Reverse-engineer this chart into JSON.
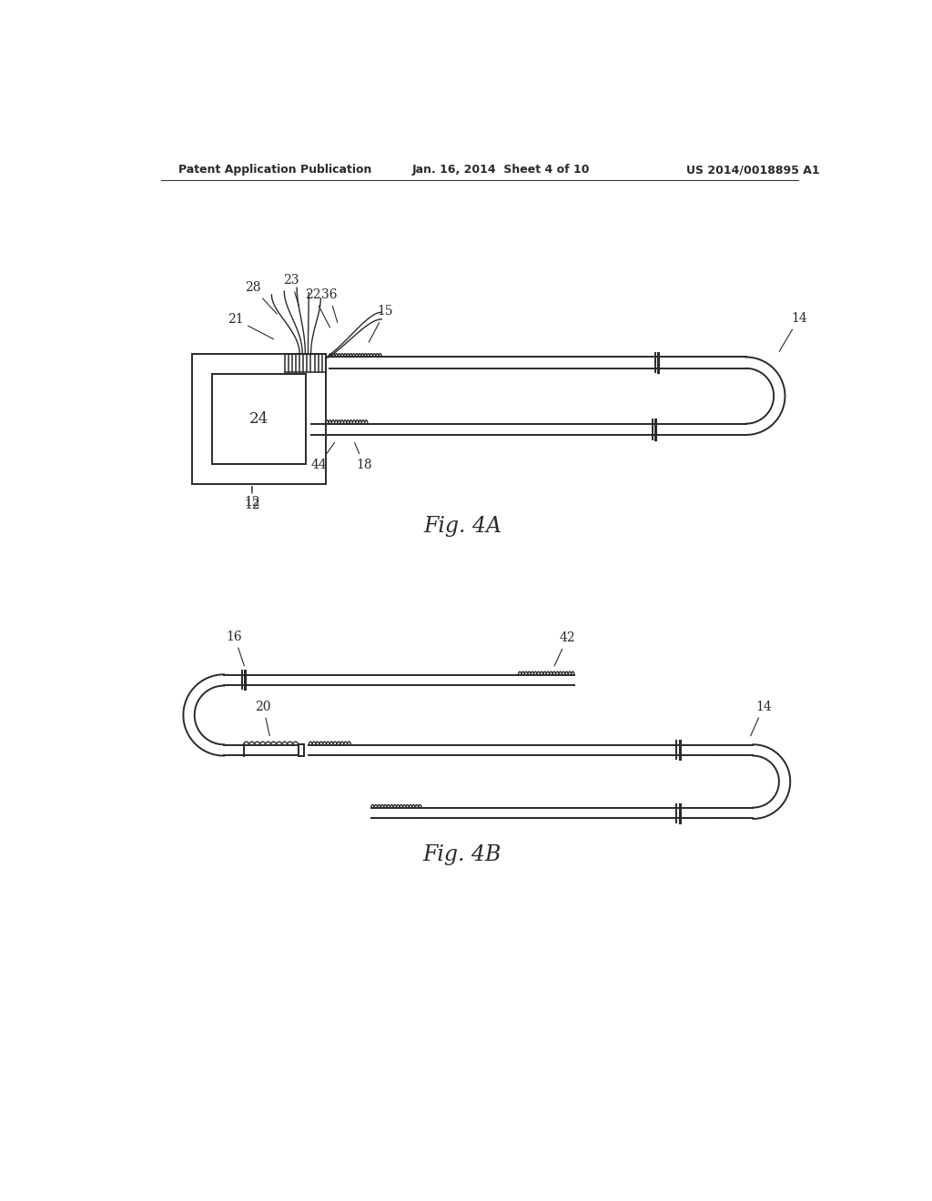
{
  "bg_color": "#ffffff",
  "line_color": "#2a2a2a",
  "header_left": "Patent Application Publication",
  "header_center": "Jan. 16, 2014  Sheet 4 of 10",
  "header_right": "US 2014/0018895 A1",
  "fig4a_label": "Fig. 4A",
  "fig4b_label": "Fig. 4B"
}
